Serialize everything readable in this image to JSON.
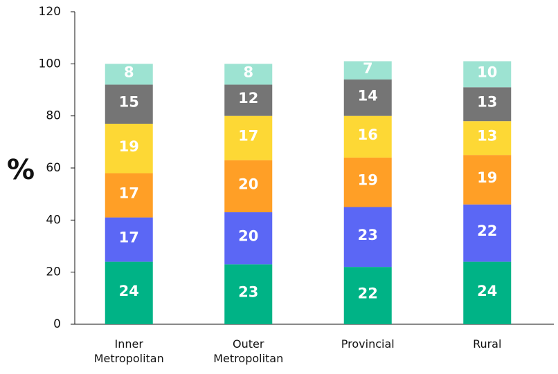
{
  "chart_data": {
    "type": "stacked_bar",
    "ylabel": "%",
    "categories": [
      "Inner Metropolitan",
      "Outer Metropolitan",
      "Provincial",
      "Rural"
    ],
    "series": [
      {
        "color": "#00b386",
        "values": [
          24,
          23,
          22,
          24
        ]
      },
      {
        "color": "#5b67f5",
        "values": [
          17,
          20,
          23,
          22
        ]
      },
      {
        "color": "#ff9f26",
        "values": [
          17,
          20,
          19,
          19
        ]
      },
      {
        "color": "#fdd835",
        "values": [
          19,
          17,
          16,
          13
        ]
      },
      {
        "color": "#757575",
        "values": [
          15,
          12,
          14,
          13
        ]
      },
      {
        "color": "#9de3d2",
        "values": [
          8,
          8,
          7,
          10
        ]
      }
    ],
    "ylim": [
      0,
      120
    ],
    "yticks": [
      0,
      20,
      40,
      60,
      80,
      100,
      120
    ]
  }
}
